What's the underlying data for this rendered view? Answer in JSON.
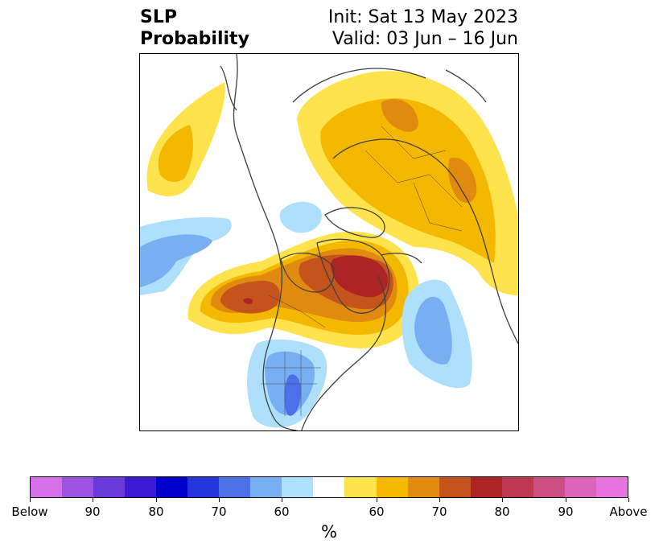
{
  "header": {
    "variable": "SLP",
    "product": "Probability",
    "init": "Init: Sat 13 May 2023",
    "valid": "Valid: 03 Jun – 16 Jun"
  },
  "colorbar": {
    "colors": [
      "#d770e8",
      "#9c53e0",
      "#6b38d9",
      "#3a1ad3",
      "#0000cd",
      "#2436da",
      "#4d70e8",
      "#78aff2",
      "#aee0fb",
      "#ffffff",
      "#ffe34d",
      "#f5b800",
      "#e08a10",
      "#c4541c",
      "#ae2424",
      "#c0384f",
      "#cc4f84",
      "#dc64ba",
      "#e875df"
    ],
    "tick_labels": [
      "Below",
      "90",
      "80",
      "70",
      "60",
      "60",
      "70",
      "80",
      "90",
      "Above"
    ],
    "units": "%"
  },
  "map": {
    "region": "Northern Hemisphere polar projection",
    "colors": {
      "gold_light": "#ffe34d",
      "gold": "#f5b800",
      "orange": "#e08a10",
      "dark_orange": "#c4541c",
      "red": "#ae2424",
      "blue_pale": "#aee0fb",
      "blue_light": "#78aff2",
      "blue_med": "#4d70e8",
      "coast": "#404040"
    }
  }
}
